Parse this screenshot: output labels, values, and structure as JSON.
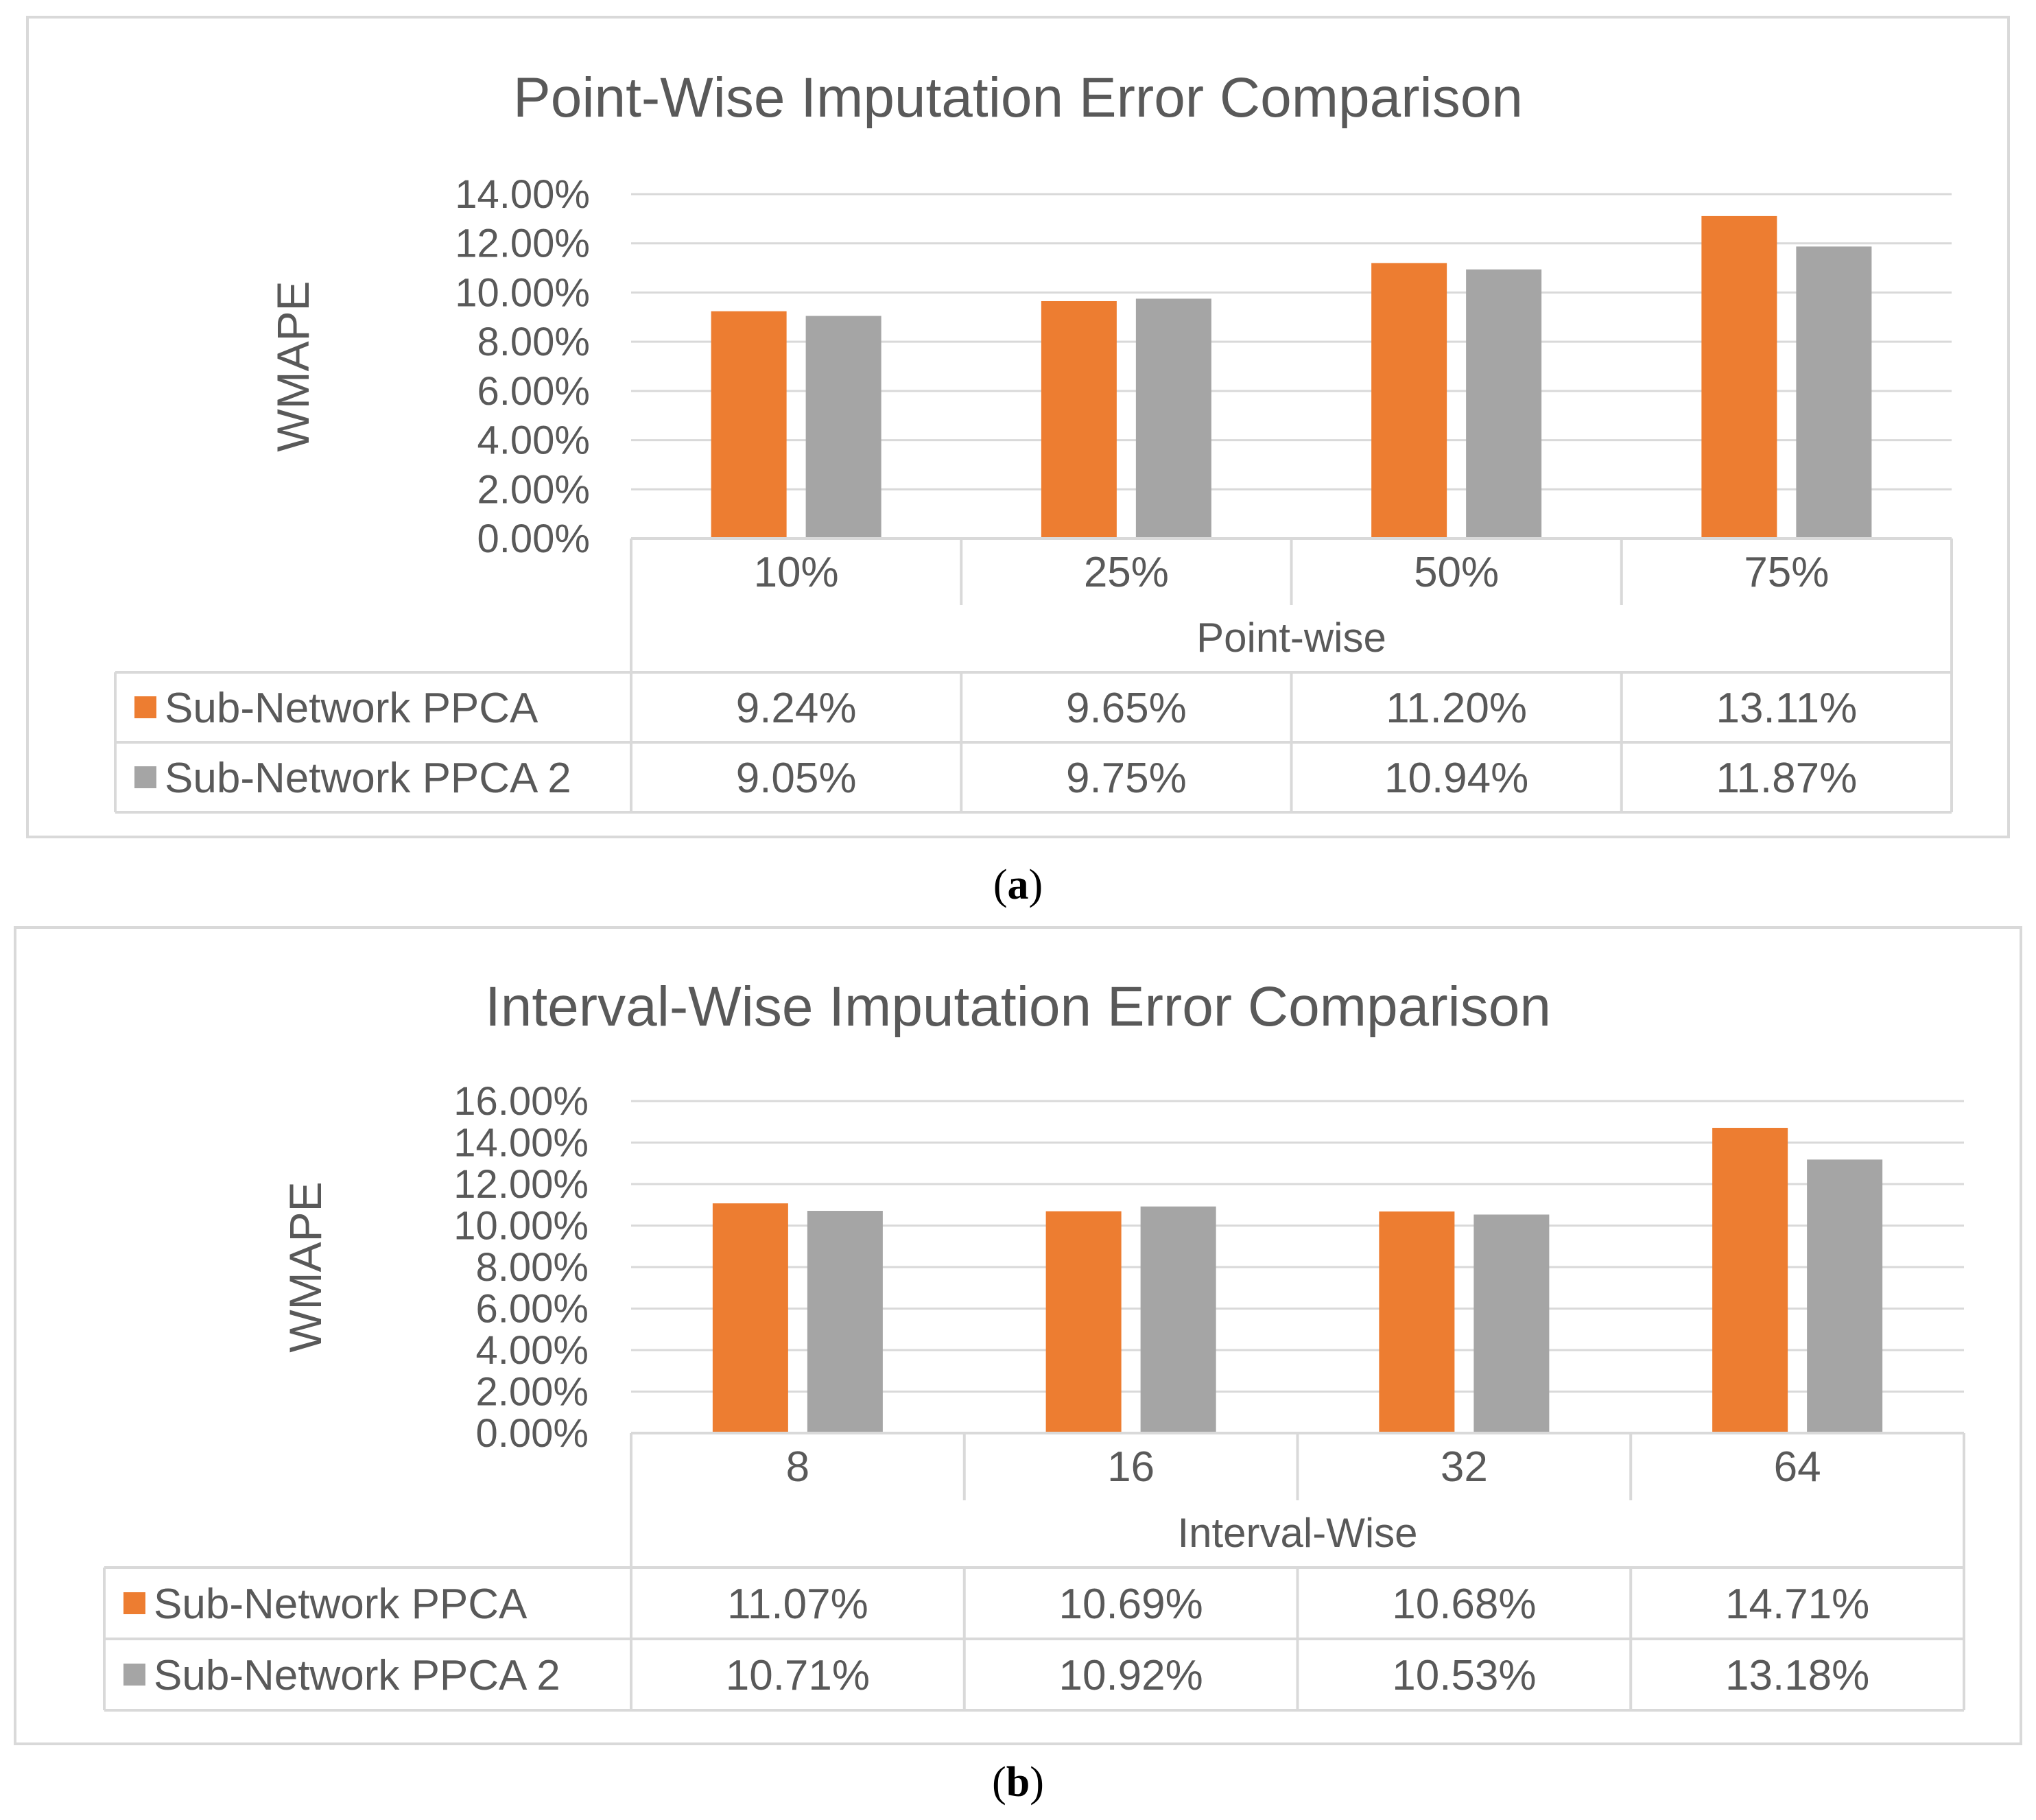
{
  "chart_data": [
    {
      "type": "bar",
      "title": "Point-Wise Imputation Error Comparison",
      "ylabel": "WMAPE",
      "xlabel": "Point-wise",
      "ylim": [
        0,
        14
      ],
      "y_ticks": [
        "0.00%",
        "2.00%",
        "4.00%",
        "6.00%",
        "8.00%",
        "10.00%",
        "12.00%",
        "14.00%"
      ],
      "categories": [
        "10%",
        "25%",
        "50%",
        "75%"
      ],
      "series": [
        {
          "name": "Sub-Network PPCA",
          "color": "#ED7D31",
          "values": [
            9.24,
            9.65,
            11.2,
            13.11
          ],
          "labels": [
            "9.24%",
            "9.65%",
            "11.20%",
            "13.11%"
          ]
        },
        {
          "name": "Sub-Network PPCA 2",
          "color": "#A5A5A5",
          "values": [
            9.05,
            9.75,
            10.94,
            11.87
          ],
          "labels": [
            "9.05%",
            "9.75%",
            "10.94%",
            "11.87%"
          ]
        }
      ],
      "grid": true,
      "legend": "data-table"
    },
    {
      "type": "bar",
      "title": "Interval-Wise Imputation Error Comparison",
      "ylabel": "WMAPE",
      "xlabel": "Interval-Wise",
      "ylim": [
        0,
        16
      ],
      "y_ticks": [
        "0.00%",
        "2.00%",
        "4.00%",
        "6.00%",
        "8.00%",
        "10.00%",
        "12.00%",
        "14.00%",
        "16.00%"
      ],
      "categories": [
        "8",
        "16",
        "32",
        "64"
      ],
      "series": [
        {
          "name": "Sub-Network PPCA",
          "color": "#ED7D31",
          "values": [
            11.07,
            10.69,
            10.68,
            14.71
          ],
          "labels": [
            "11.07%",
            "10.69%",
            "10.68%",
            "14.71%"
          ]
        },
        {
          "name": "Sub-Network PPCA 2",
          "color": "#A5A5A5",
          "values": [
            10.71,
            10.92,
            10.53,
            13.18
          ],
          "labels": [
            "10.71%",
            "10.92%",
            "10.53%",
            "13.18%"
          ]
        }
      ],
      "grid": true,
      "legend": "data-table"
    }
  ],
  "captions": [
    {
      "letter": "a"
    },
    {
      "letter": "b"
    }
  ]
}
